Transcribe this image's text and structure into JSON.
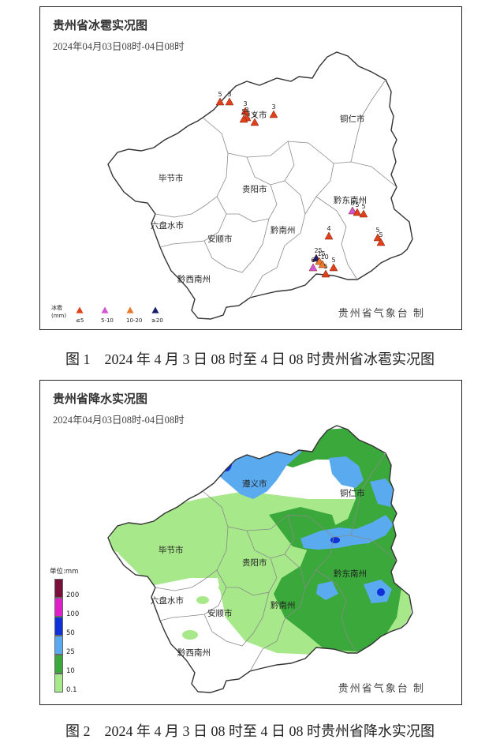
{
  "figure1": {
    "title": "贵州省冰雹实况图",
    "subtitle": "2024年04月03日08时-04日08时",
    "credit": "贵州省气象台 制",
    "caption": "图 1　2024 年 4 月 3 日 08 时至 4 日 08 时贵州省冰雹实况图",
    "legend": {
      "title_line1": "冰雹",
      "title_line2": "(mm)",
      "items": [
        {
          "label": "≤5",
          "color": "#e0401a"
        },
        {
          "label": "5-10",
          "color": "#d455d4"
        },
        {
          "label": "10-20",
          "color": "#e87a2a"
        },
        {
          "label": "≥20",
          "color": "#1a1f6b"
        }
      ]
    },
    "hail_reports": [
      {
        "value": "5",
        "class": "≤5"
      },
      {
        "value": "3",
        "class": "≤5"
      },
      {
        "value": "3",
        "class": "≤5"
      },
      {
        "value": "3",
        "class": "≤5"
      },
      {
        "value": "5",
        "class": "≤5"
      },
      {
        "value": "5",
        "class": "≤5"
      },
      {
        "value": "3",
        "class": "≤5"
      },
      {
        "value": "8",
        "class": "5-10"
      },
      {
        "value": "5",
        "class": "≤5"
      },
      {
        "value": "5",
        "class": "≤5"
      },
      {
        "value": "5",
        "class": "≤5"
      },
      {
        "value": "4",
        "class": "≤5"
      },
      {
        "value": "5",
        "class": "≤5"
      },
      {
        "value": "25",
        "class": "≥20"
      },
      {
        "value": "15",
        "class": "10-20"
      },
      {
        "value": "10",
        "class": "10-20"
      },
      {
        "value": "6",
        "class": "5-10"
      },
      {
        "value": "5",
        "class": "≤5"
      },
      {
        "value": "5",
        "class": "≤5"
      }
    ]
  },
  "figure2": {
    "title": "贵州省降水实况图",
    "subtitle": "2024年04月03日08时-04日08时",
    "credit": "贵州省气象台 制",
    "caption": "图 2　2024 年 4 月 3 日 08 时至 4 日 08 时贵州省降水实况图",
    "legend": {
      "unit": "单位:mm",
      "levels": [
        {
          "label": "200",
          "color": "#7a0f3a"
        },
        {
          "label": "100",
          "color": "#e020c8"
        },
        {
          "label": "50",
          "color": "#1030d8"
        },
        {
          "label": "25",
          "color": "#5aaaf0"
        },
        {
          "label": "10",
          "color": "#3aa83a"
        },
        {
          "label": "0.1",
          "color": "#a6e88a"
        }
      ]
    }
  },
  "cities": [
    "毕节市",
    "遵义市",
    "铜仁市",
    "贵阳市",
    "六盘水市",
    "安顺市",
    "黔南州",
    "黔东南州",
    "黔西南州"
  ]
}
